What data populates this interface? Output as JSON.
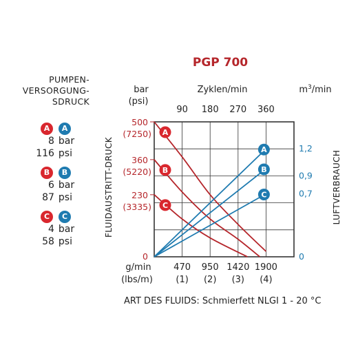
{
  "pressure_legend": {
    "title_lines": [
      "PUMPEN-",
      "VERSORGUNG-",
      "SDRUCK"
    ],
    "groups": [
      {
        "letter": "A",
        "bar": "8",
        "bar_unit": "bar",
        "psi": "116",
        "psi_unit": "psi"
      },
      {
        "letter": "B",
        "bar": "6",
        "bar_unit": "bar",
        "psi": "87",
        "psi_unit": "psi"
      },
      {
        "letter": "C",
        "bar": "4",
        "bar_unit": "bar",
        "psi": "58",
        "psi_unit": "psi"
      }
    ]
  },
  "colors": {
    "fluid": "#b5262b",
    "air": "#1f7bb0",
    "badge_red": "#d9272e",
    "grid": "#333333"
  },
  "chart_data": {
    "type": "line",
    "title": "PGP 700",
    "footer": "ART DES FLUIDS: Schmierfett NLGI 1 - 20 °C",
    "x_top": {
      "label": "Zyklen/min",
      "ticks": [
        "90",
        "180",
        "270",
        "360"
      ],
      "range": [
        0,
        450
      ]
    },
    "x_bottom": {
      "unit_lines": [
        "g/min",
        "(lbs/m)"
      ],
      "ticks": [
        {
          "value": "470",
          "sub": "(1)"
        },
        {
          "value": "950",
          "sub": "(2)"
        },
        {
          "value": "1420",
          "sub": "(3)"
        },
        {
          "value": "1900",
          "sub": "(4)"
        }
      ]
    },
    "y_left": {
      "label": "FLUIDAUSTRITT-DRUCK",
      "unit_lines": [
        "bar",
        "(psi)"
      ],
      "range": [
        0,
        500
      ],
      "ticks": [
        {
          "value": 500,
          "bar": "500",
          "psi": "(7250)"
        },
        {
          "value": 360,
          "bar": "360",
          "psi": "(5220)"
        },
        {
          "value": 230,
          "bar": "230",
          "psi": "(3335)"
        },
        {
          "value": 0,
          "bar": "0",
          "psi": ""
        }
      ]
    },
    "y_right": {
      "label": "LUFTVERBRAUCH",
      "unit": "m3/min",
      "range": [
        0,
        1.5
      ],
      "ticks": [
        {
          "value": 1.2,
          "label": "1,2"
        },
        {
          "value": 0.9,
          "label": "0,9"
        },
        {
          "value": 0.7,
          "label": "0,7"
        },
        {
          "value": 0,
          "label": "0"
        }
      ]
    },
    "fluid_pressure_series": [
      {
        "name": "A",
        "points": [
          [
            0,
            500
          ],
          [
            90,
            370
          ],
          [
            180,
            230
          ],
          [
            270,
            120
          ],
          [
            360,
            20
          ]
        ]
      },
      {
        "name": "B",
        "points": [
          [
            0,
            360
          ],
          [
            90,
            240
          ],
          [
            180,
            140
          ],
          [
            270,
            65
          ],
          [
            340,
            0
          ]
        ]
      },
      {
        "name": "C",
        "points": [
          [
            0,
            230
          ],
          [
            90,
            140
          ],
          [
            180,
            70
          ],
          [
            300,
            0
          ]
        ]
      }
    ],
    "air_consumption_series": [
      {
        "name": "A",
        "points": [
          [
            0,
            0
          ],
          [
            360,
            1.2
          ]
        ]
      },
      {
        "name": "B",
        "points": [
          [
            0,
            0
          ],
          [
            360,
            0.98
          ]
        ]
      },
      {
        "name": "C",
        "points": [
          [
            0,
            0
          ],
          [
            360,
            0.7
          ]
        ]
      }
    ]
  }
}
